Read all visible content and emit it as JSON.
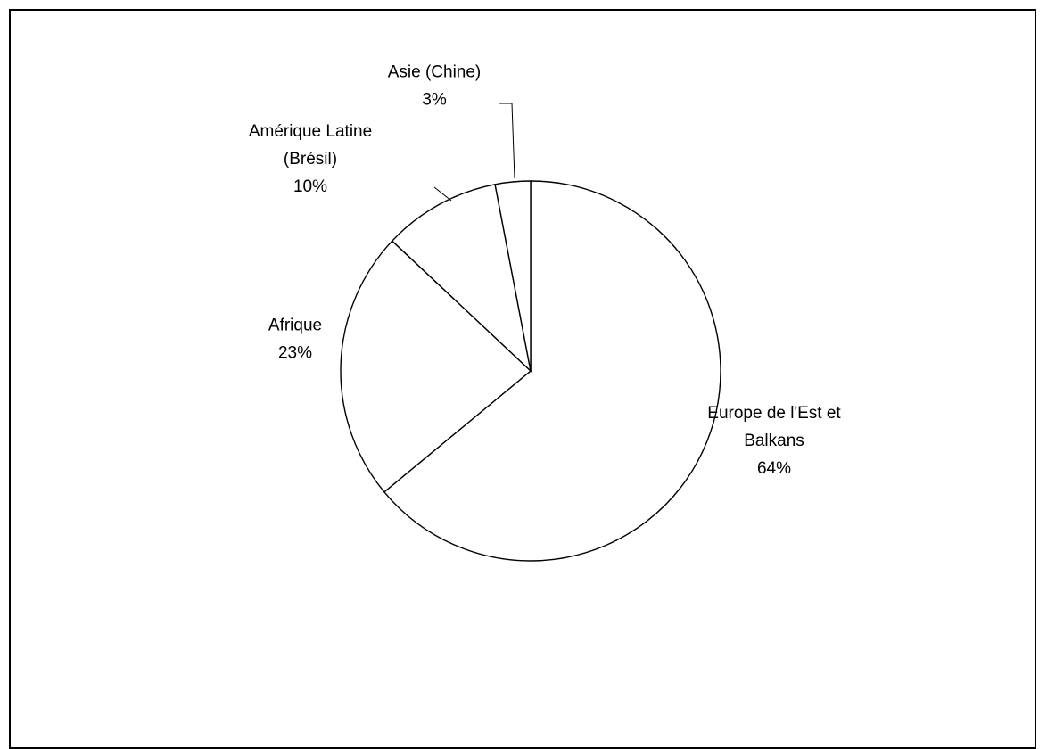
{
  "chart_data": {
    "type": "pie",
    "title": "",
    "slices": [
      {
        "label": "Europe de l'Est et Balkans",
        "label_lines": [
          "Europe de l'Est et",
          "Balkans"
        ],
        "value": 64,
        "value_text": "64%"
      },
      {
        "label": "Afrique",
        "label_lines": [
          "Afrique"
        ],
        "value": 23,
        "value_text": "23%"
      },
      {
        "label": "Amérique Latine (Brésil)",
        "label_lines": [
          "Amérique Latine",
          "(Brésil)"
        ],
        "value": 10,
        "value_text": "10%"
      },
      {
        "label": "Asie (Chine)",
        "label_lines": [
          "Asie (Chine)"
        ],
        "value": 3,
        "value_text": "3%"
      }
    ],
    "start_angle_deg": 0,
    "direction": "clockwise",
    "legend": "none",
    "colors": {
      "fill": "#ffffff",
      "stroke": "#000000"
    }
  }
}
